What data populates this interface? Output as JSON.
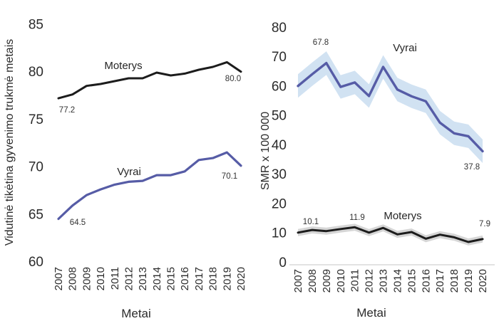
{
  "figure": {
    "background": "#ffffff",
    "description": "Two line charts: life expectancy and SMR per 100 000, Lithuania 2007-2020"
  },
  "chart_data": [
    {
      "type": "line",
      "name": "life-expectancy",
      "title": "",
      "xlabel": "Metai",
      "ylabel": "Vidutinė tikėtina gyvenimo trukmė metais",
      "x": [
        2007,
        2008,
        2009,
        2010,
        2011,
        2012,
        2013,
        2014,
        2015,
        2016,
        2017,
        2018,
        2019,
        2020
      ],
      "ylim": [
        60,
        85
      ],
      "yticks": [
        85,
        80,
        75,
        70,
        65,
        60
      ],
      "grid": false,
      "legend_position": "inline-labels",
      "series": [
        {
          "name": "Moterys",
          "color": "#1c1c1c",
          "values": [
            77.2,
            77.6,
            78.5,
            78.7,
            79.0,
            79.3,
            79.3,
            79.9,
            79.6,
            79.8,
            80.2,
            80.5,
            81.0,
            80.0
          ],
          "point_labels": {
            "first": "77.2",
            "last": "80.0"
          }
        },
        {
          "name": "Vyrai",
          "color": "#565ca6",
          "values": [
            64.5,
            65.9,
            67.0,
            67.6,
            68.1,
            68.4,
            68.5,
            69.1,
            69.1,
            69.5,
            70.7,
            70.9,
            71.5,
            70.1
          ],
          "point_labels": {
            "first": "64.5",
            "last": "70.1"
          }
        }
      ]
    },
    {
      "type": "line",
      "name": "smr",
      "title": "",
      "xlabel": "Metai",
      "ylabel": "SMR x 100 000",
      "x": [
        2007,
        2008,
        2009,
        2010,
        2011,
        2012,
        2013,
        2014,
        2015,
        2016,
        2017,
        2018,
        2019,
        2020
      ],
      "ylim": [
        0,
        80
      ],
      "yticks": [
        80,
        70,
        60,
        50,
        40,
        30,
        20,
        10,
        0
      ],
      "grid": false,
      "baseline_at_zero": true,
      "baseline_color": "#d9d9d9",
      "legend_position": "inline-labels",
      "series": [
        {
          "name": "Vyrai",
          "color": "#565ca6",
          "ci_color": "#d1e2f2",
          "ci_halfwidth": 4.0,
          "values": [
            60.0,
            64.0,
            67.8,
            59.7,
            61.2,
            56.6,
            66.5,
            58.8,
            56.5,
            54.8,
            47.5,
            43.9,
            42.9,
            37.8
          ],
          "point_labels": {
            "peak": "67.8",
            "last": "37.8"
          }
        },
        {
          "name": "Moterys",
          "color": "#1c1c1c",
          "ci_color": "#d6d6d6",
          "ci_halfwidth": 1.2,
          "values": [
            10.1,
            11.0,
            10.6,
            11.3,
            11.9,
            10.1,
            11.7,
            9.5,
            10.3,
            8.0,
            9.4,
            8.5,
            6.9,
            7.9
          ],
          "point_labels": {
            "first": "10.1",
            "peak": "11.9",
            "last": "7.9"
          }
        }
      ]
    }
  ]
}
